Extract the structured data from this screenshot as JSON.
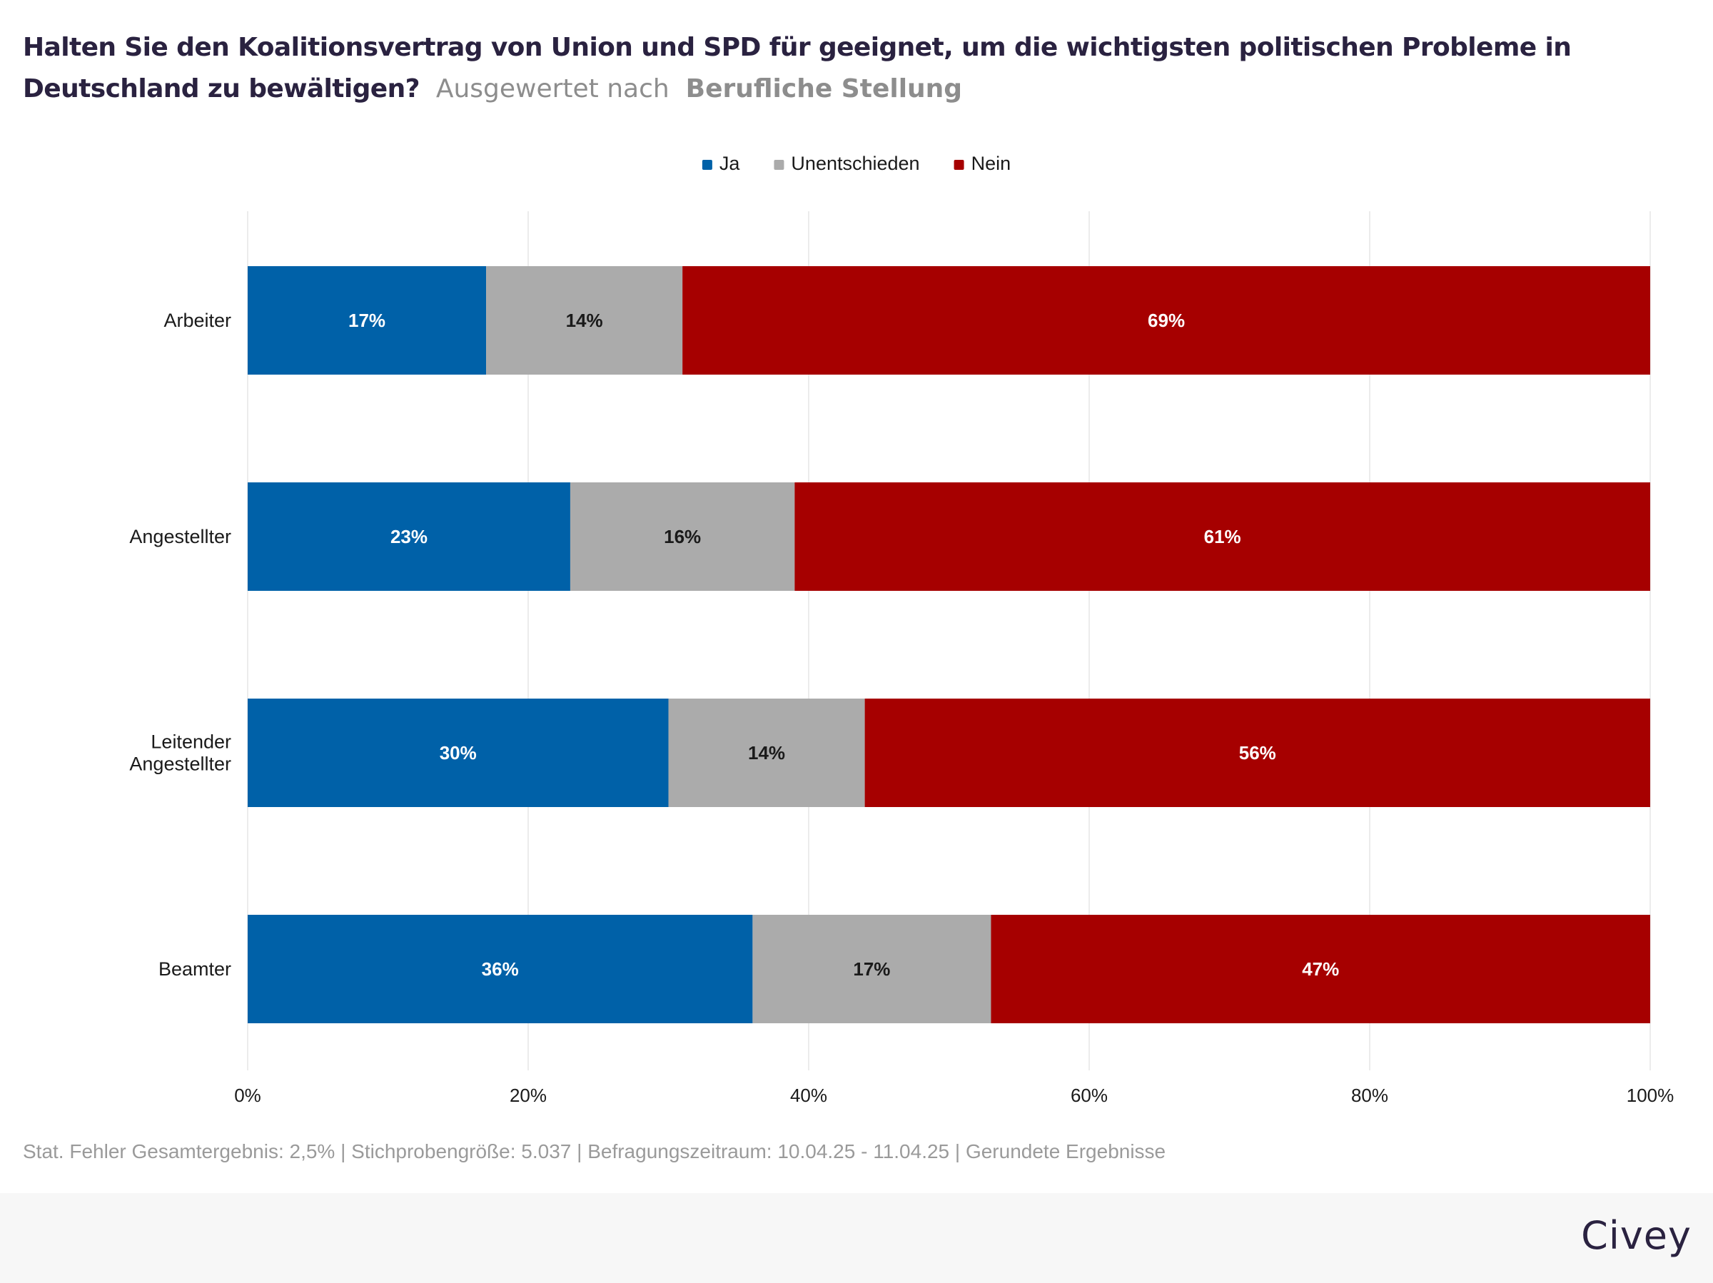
{
  "title": {
    "main": "Halten Sie den Koalitionsvertrag von Union und SPD für geeignet, um die wichtigsten politischen Probleme in Deutschland zu bewältigen?",
    "separator": "Ausgewertet nach",
    "group": "Berufliche Stellung"
  },
  "footnote": "Stat. Fehler Gesamtergebnis: 2,5% | Stichprobengröße: 5.037 | Befragungszeitraum: 10.04.25 - 11.04.25 | Gerundete Ergebnisse",
  "brand": "Civey",
  "colors": {
    "ja": "#0061a8",
    "unentschieden": "#ababab",
    "nein": "#a60000",
    "grid": "#e6e6e6",
    "text": "#1a1a1a",
    "title": "#2a2240"
  },
  "chart_data": {
    "type": "bar",
    "orientation": "horizontal",
    "stacked": true,
    "categories": [
      [
        "Arbeiter"
      ],
      [
        "Angestellter"
      ],
      [
        "Leitender",
        "Angestellter"
      ],
      [
        "Beamter"
      ]
    ],
    "series": [
      {
        "name": "Ja",
        "color": "#0061a8",
        "label_color": "#ffffff",
        "values": [
          17,
          23,
          30,
          36
        ]
      },
      {
        "name": "Unentschieden",
        "color": "#ababab",
        "label_color": "#1a1a1a",
        "values": [
          14,
          16,
          14,
          17
        ]
      },
      {
        "name": "Nein",
        "color": "#a60000",
        "label_color": "#ffffff",
        "values": [
          69,
          61,
          56,
          47
        ]
      }
    ],
    "xlim": [
      0,
      100
    ],
    "xticks": [
      0,
      20,
      40,
      60,
      80,
      100
    ],
    "tick_suffix": "%",
    "value_suffix": "%",
    "grid": true,
    "legend": "top-center"
  }
}
